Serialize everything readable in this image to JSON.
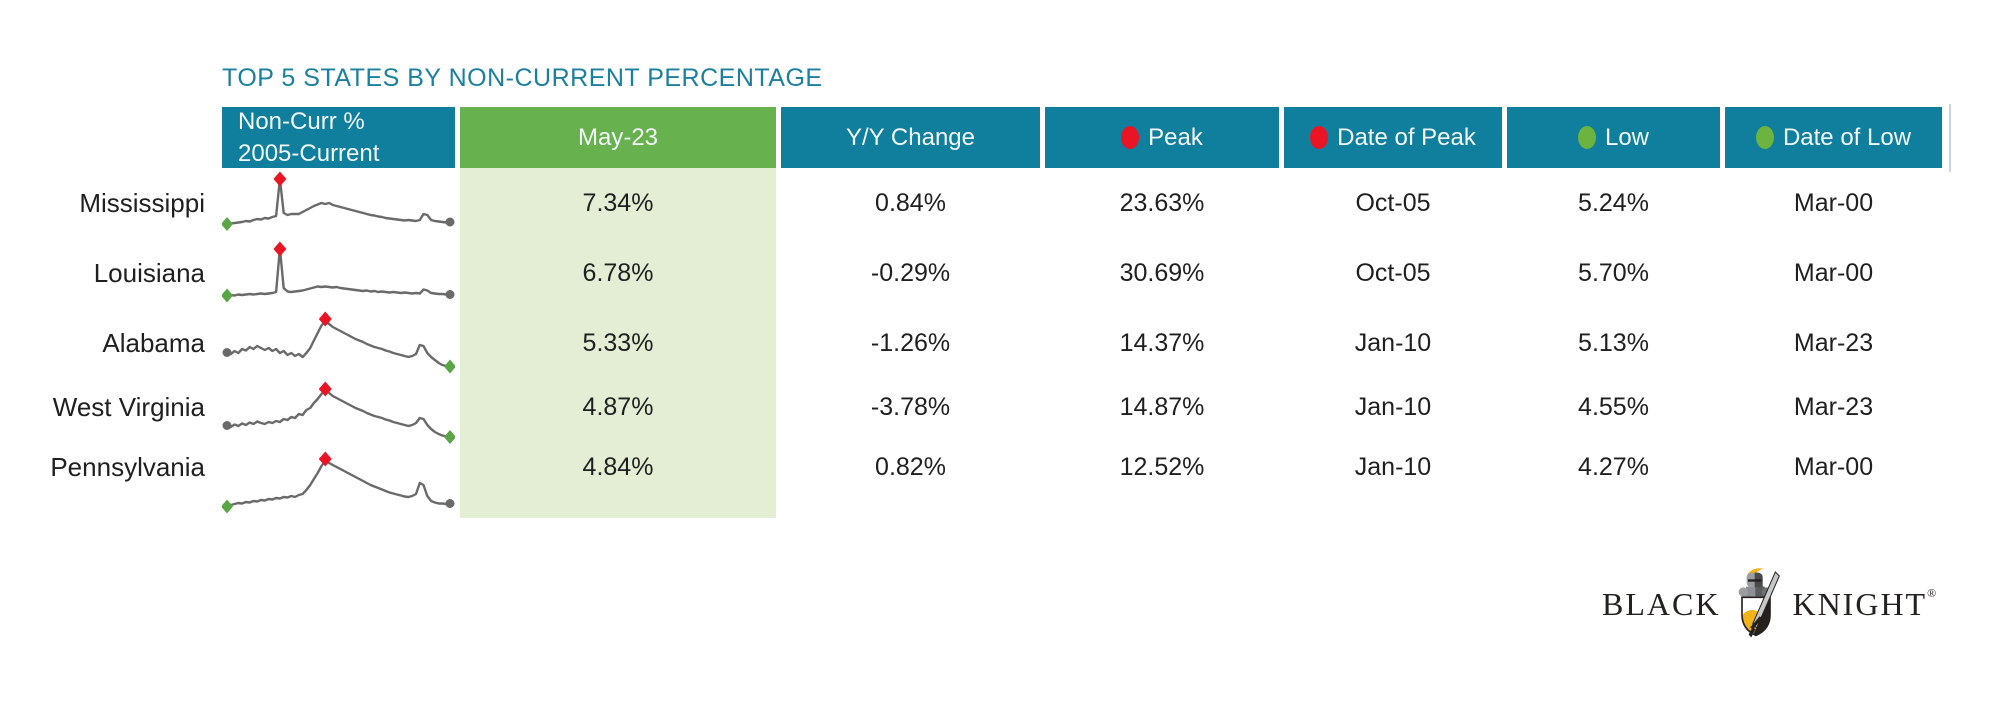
{
  "title": "TOP 5 STATES BY NON-CURRENT PERCENTAGE",
  "table": {
    "columns": [
      {
        "label_line1": "Non-Curr %",
        "label_line2": "2005-Current",
        "bg": "teal",
        "dot": null
      },
      {
        "label": "May-23",
        "bg": "green",
        "dot": null
      },
      {
        "label": "Y/Y Change",
        "bg": "teal",
        "dot": null
      },
      {
        "label": "Peak",
        "bg": "teal",
        "dot": "red"
      },
      {
        "label": "Date of Peak",
        "bg": "teal",
        "dot": "red"
      },
      {
        "label": "Low",
        "bg": "teal",
        "dot": "green"
      },
      {
        "label": "Date of Low",
        "bg": "teal",
        "dot": "green"
      }
    ],
    "rows": [
      {
        "state": "Mississippi",
        "may23": "7.34%",
        "yy_change": "0.84%",
        "peak": "23.63%",
        "date_of_peak": "Oct-05",
        "low": "5.24%",
        "date_of_low": "Mar-00"
      },
      {
        "state": "Louisiana",
        "may23": "6.78%",
        "yy_change": "-0.29%",
        "peak": "30.69%",
        "date_of_peak": "Oct-05",
        "low": "5.70%",
        "date_of_low": "Mar-00"
      },
      {
        "state": "Alabama",
        "may23": "5.33%",
        "yy_change": "-1.26%",
        "peak": "14.37%",
        "date_of_peak": "Jan-10",
        "low": "5.13%",
        "date_of_low": "Mar-23"
      },
      {
        "state": "West Virginia",
        "may23": "4.87%",
        "yy_change": "-3.78%",
        "peak": "14.87%",
        "date_of_peak": "Jan-10",
        "low": "4.55%",
        "date_of_low": "Mar-23"
      },
      {
        "state": "Pennsylvania",
        "may23": "4.84%",
        "yy_change": "0.82%",
        "peak": "12.52%",
        "date_of_peak": "Jan-10",
        "low": "4.27%",
        "date_of_low": "Mar-00"
      }
    ]
  },
  "chart_data": {
    "type": "table",
    "title": "TOP 5 STATES BY NON-CURRENT PERCENTAGE",
    "columns": [
      "Non-Curr % 2005-Current",
      "May-23",
      "Y/Y Change",
      "Peak",
      "Date of Peak",
      "Low",
      "Date of Low"
    ],
    "rows": [
      [
        "Mississippi",
        "7.34%",
        "0.84%",
        "23.63%",
        "Oct-05",
        "5.24%",
        "Mar-00"
      ],
      [
        "Louisiana",
        "6.78%",
        "-0.29%",
        "30.69%",
        "Oct-05",
        "5.70%",
        "Mar-00"
      ],
      [
        "Alabama",
        "5.33%",
        "-1.26%",
        "14.37%",
        "Jan-10",
        "5.13%",
        "Mar-23"
      ],
      [
        "West Virginia",
        "4.87%",
        "-3.78%",
        "14.87%",
        "Jan-10",
        "4.55%",
        "Mar-23"
      ],
      [
        "Pennsylvania",
        "4.84%",
        "0.82%",
        "12.52%",
        "Jan-10",
        "4.27%",
        "Mar-00"
      ]
    ],
    "sparklines": [
      {
        "state": "Mississippi",
        "x_range": "2005-current",
        "peak_index": 14,
        "start_marker": "green",
        "end_marker": "gray",
        "shape_values": [
          8,
          9,
          10,
          11,
          12,
          14,
          13,
          16,
          18,
          17,
          20,
          19,
          22,
          24,
          98,
          30,
          26,
          28,
          28,
          28,
          32,
          36,
          40,
          44,
          47,
          50,
          48,
          50,
          46,
          44,
          42,
          40,
          38,
          36,
          34,
          32,
          30,
          28,
          26,
          25,
          23,
          22,
          20,
          19,
          18,
          17,
          16,
          15,
          16,
          15,
          14,
          16,
          28,
          26,
          16,
          14,
          13,
          12,
          11,
          12
        ]
      },
      {
        "state": "Louisiana",
        "x_range": "2005-current",
        "peak_index": 14,
        "start_marker": "green",
        "end_marker": "gray",
        "shape_values": [
          5,
          6,
          5,
          7,
          6,
          7,
          8,
          7,
          8,
          9,
          8,
          9,
          10,
          12,
          99,
          20,
          13,
          12,
          13,
          14,
          15,
          17,
          19,
          21,
          23,
          22,
          23,
          22,
          21,
          22,
          20,
          19,
          18,
          17,
          16,
          15,
          14,
          15,
          13,
          14,
          12,
          13,
          12,
          11,
          12,
          11,
          10,
          11,
          10,
          9,
          10,
          9,
          17,
          15,
          10,
          9,
          8,
          8,
          7,
          7
        ]
      },
      {
        "state": "Alabama",
        "x_range": "2005-current",
        "peak_index": 26,
        "start_marker": "gray",
        "end_marker": "green",
        "shape_values": [
          31,
          28,
          34,
          30,
          38,
          35,
          42,
          38,
          44,
          40,
          36,
          40,
          34,
          38,
          30,
          34,
          26,
          30,
          24,
          28,
          22,
          30,
          40,
          55,
          70,
          85,
          94,
          88,
          82,
          78,
          74,
          70,
          66,
          62,
          58,
          55,
          52,
          48,
          45,
          42,
          40,
          38,
          35,
          33,
          30,
          28,
          26,
          24,
          22,
          24,
          28,
          46,
          44,
          30,
          22,
          16,
          10,
          6,
          4,
          3
        ]
      },
      {
        "state": "West Virginia",
        "x_range": "2005-current",
        "peak_index": 26,
        "start_marker": "gray",
        "end_marker": "green",
        "shape_values": [
          25,
          22,
          27,
          24,
          29,
          26,
          31,
          28,
          33,
          30,
          28,
          32,
          30,
          34,
          32,
          38,
          36,
          42,
          40,
          48,
          46,
          56,
          60,
          70,
          78,
          88,
          97,
          90,
          84,
          80,
          76,
          72,
          68,
          64,
          60,
          57,
          54,
          50,
          47,
          44,
          42,
          40,
          37,
          35,
          32,
          30,
          28,
          26,
          24,
          26,
          30,
          40,
          38,
          26,
          18,
          12,
          8,
          5,
          3,
          2
        ]
      },
      {
        "state": "Pennsylvania",
        "x_range": "2005-current",
        "peak_index": 26,
        "start_marker": "green",
        "end_marker": "gray",
        "shape_values": [
          3,
          6,
          8,
          10,
          9,
          12,
          11,
          14,
          13,
          16,
          15,
          18,
          17,
          20,
          19,
          22,
          21,
          24,
          22,
          26,
          28,
          36,
          46,
          58,
          70,
          84,
          95,
          90,
          86,
          82,
          78,
          74,
          70,
          66,
          62,
          58,
          54,
          50,
          46,
          43,
          40,
          37,
          34,
          31,
          29,
          27,
          25,
          23,
          22,
          24,
          28,
          50,
          46,
          24,
          14,
          11,
          9,
          9,
          8,
          9
        ]
      }
    ]
  },
  "logo": {
    "word_left": "BLACK",
    "word_right": "KNIGHT",
    "registered": "®"
  },
  "colors": {
    "teal": "#0f7f9d",
    "green": "#68b14f",
    "cell_green": "#e4eed5",
    "red": "#e91525",
    "marker_green": "#5aa646",
    "spark": "#6a6a6a",
    "title": "#1b7f9e",
    "text": "#1f1f1f"
  }
}
